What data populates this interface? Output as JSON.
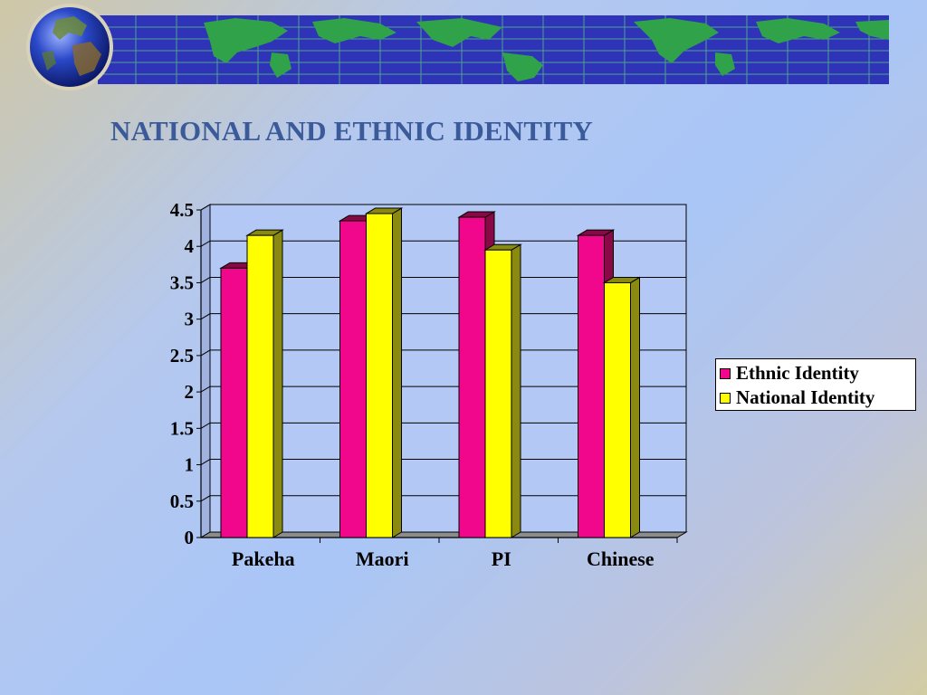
{
  "slide": {
    "title": "NATIONAL AND ETHNIC IDENTITY"
  },
  "banner": {
    "icons": [
      "globe-icon",
      "world-map-strip"
    ]
  },
  "colors": {
    "ethnic": "#f0078c",
    "ethnic_dark": "#8a0845",
    "national": "#ffff00",
    "national_dark": "#8a8a10",
    "plot_bg": "#b4c8f5",
    "floor": "#8c8c8c"
  },
  "chart_data": {
    "type": "bar",
    "title": "",
    "xlabel": "",
    "ylabel": "",
    "categories": [
      "Pakeha",
      "Maori",
      "PI",
      "Chinese"
    ],
    "series": [
      {
        "name": "Ethnic Identity",
        "values": [
          3.7,
          4.35,
          4.4,
          4.15
        ]
      },
      {
        "name": "National Identity",
        "values": [
          4.15,
          4.45,
          3.95,
          3.5
        ]
      }
    ],
    "ylim": [
      0,
      4.5
    ],
    "yticks": [
      "0",
      "0.5",
      "1",
      "1.5",
      "2",
      "2.5",
      "3",
      "3.5",
      "4",
      "4.5"
    ],
    "grid": true,
    "three_d": true,
    "legend_position": "right"
  }
}
